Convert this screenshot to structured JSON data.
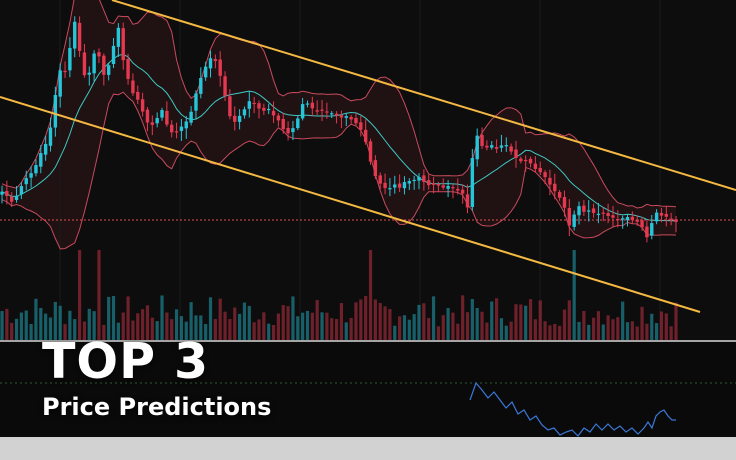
{
  "headline": {
    "title": "TOP 3",
    "subtitle": "Price Predictions"
  },
  "colors": {
    "background": "#0d0d0d",
    "bull": "#26c6da",
    "bear": "#e53950",
    "channel": "#f4b942",
    "bollinger_band": "#c74b5d",
    "bollinger_basis": "#3ec9c2",
    "price_line": "#e05050",
    "indicator": "#3b78d8"
  },
  "chart_data": {
    "type": "candlestick",
    "title": "",
    "xlabel": "",
    "ylabel": "",
    "candles": 140,
    "path": [
      [
        0,
        190
      ],
      [
        6,
        195
      ],
      [
        12,
        202
      ],
      [
        18,
        194
      ],
      [
        24,
        180
      ],
      [
        30,
        175
      ],
      [
        36,
        165
      ],
      [
        42,
        150
      ],
      [
        48,
        140
      ],
      [
        52,
        120
      ],
      [
        56,
        90
      ],
      [
        60,
        70
      ],
      [
        64,
        78
      ],
      [
        68,
        55
      ],
      [
        72,
        40
      ],
      [
        75,
        20
      ],
      [
        78,
        45
      ],
      [
        82,
        60
      ],
      [
        86,
        85
      ],
      [
        90,
        70
      ],
      [
        95,
        50
      ],
      [
        100,
        58
      ],
      [
        105,
        80
      ],
      [
        110,
        60
      ],
      [
        115,
        40
      ],
      [
        118,
        25
      ],
      [
        122,
        55
      ],
      [
        126,
        72
      ],
      [
        132,
        92
      ],
      [
        138,
        100
      ],
      [
        144,
        115
      ],
      [
        150,
        128
      ],
      [
        156,
        120
      ],
      [
        162,
        110
      ],
      [
        168,
        128
      ],
      [
        174,
        135
      ],
      [
        180,
        128
      ],
      [
        186,
        122
      ],
      [
        192,
        110
      ],
      [
        198,
        85
      ],
      [
        204,
        70
      ],
      [
        210,
        58
      ],
      [
        215,
        60
      ],
      [
        220,
        75
      ],
      [
        226,
        100
      ],
      [
        232,
        125
      ],
      [
        238,
        118
      ],
      [
        244,
        110
      ],
      [
        250,
        100
      ],
      [
        256,
        105
      ],
      [
        262,
        112
      ],
      [
        268,
        108
      ],
      [
        274,
        116
      ],
      [
        280,
        122
      ],
      [
        286,
        135
      ],
      [
        292,
        130
      ],
      [
        298,
        118
      ],
      [
        304,
        100
      ],
      [
        310,
        106
      ],
      [
        316,
        112
      ],
      [
        322,
        110
      ],
      [
        328,
        112
      ],
      [
        334,
        114
      ],
      [
        340,
        118
      ],
      [
        346,
        116
      ],
      [
        352,
        120
      ],
      [
        358,
        125
      ],
      [
        364,
        135
      ],
      [
        370,
        160
      ],
      [
        376,
        178
      ],
      [
        382,
        186
      ],
      [
        388,
        190
      ],
      [
        394,
        184
      ],
      [
        400,
        188
      ],
      [
        406,
        180
      ],
      [
        412,
        182
      ],
      [
        418,
        176
      ],
      [
        424,
        182
      ],
      [
        430,
        186
      ],
      [
        436,
        184
      ],
      [
        442,
        188
      ],
      [
        448,
        186
      ],
      [
        454,
        188
      ],
      [
        460,
        192
      ],
      [
        465,
        195
      ],
      [
        468,
        210
      ],
      [
        471,
        185
      ],
      [
        474,
        125
      ],
      [
        477,
        135
      ],
      [
        480,
        145
      ],
      [
        486,
        148
      ],
      [
        492,
        145
      ],
      [
        498,
        150
      ],
      [
        504,
        142
      ],
      [
        510,
        150
      ],
      [
        516,
        158
      ],
      [
        522,
        162
      ],
      [
        528,
        160
      ],
      [
        534,
        168
      ],
      [
        540,
        172
      ],
      [
        546,
        178
      ],
      [
        552,
        188
      ],
      [
        558,
        195
      ],
      [
        564,
        205
      ],
      [
        568,
        228
      ],
      [
        572,
        220
      ],
      [
        576,
        210
      ],
      [
        580,
        205
      ],
      [
        584,
        212
      ],
      [
        590,
        210
      ],
      [
        596,
        215
      ],
      [
        602,
        212
      ],
      [
        608,
        216
      ],
      [
        614,
        218
      ],
      [
        620,
        220
      ],
      [
        626,
        216
      ],
      [
        632,
        220
      ],
      [
        638,
        222
      ],
      [
        644,
        230
      ],
      [
        648,
        240
      ],
      [
        652,
        222
      ],
      [
        656,
        212
      ],
      [
        660,
        216
      ],
      [
        664,
        215
      ],
      [
        668,
        218
      ],
      [
        672,
        219
      ],
      [
        676,
        222
      ]
    ],
    "channel_lines": [
      {
        "x": [
          112,
          736
        ],
        "y": [
          0,
          190
        ]
      },
      {
        "x": [
          0,
          700
        ],
        "y": [
          97,
          312
        ]
      }
    ],
    "reference_price_level": 220,
    "volume_panel": {
      "top": 250,
      "bottom": 340
    },
    "indicator_panel": {
      "top": 383,
      "bottom": 437
    },
    "indicator_path": [
      [
        470,
        400
      ],
      [
        476,
        383
      ],
      [
        482,
        390
      ],
      [
        488,
        398
      ],
      [
        494,
        392
      ],
      [
        500,
        400
      ],
      [
        506,
        408
      ],
      [
        512,
        402
      ],
      [
        518,
        414
      ],
      [
        524,
        410
      ],
      [
        530,
        420
      ],
      [
        536,
        416
      ],
      [
        542,
        425
      ],
      [
        548,
        430
      ],
      [
        554,
        428
      ],
      [
        560,
        435
      ],
      [
        566,
        432
      ],
      [
        572,
        430
      ],
      [
        578,
        436
      ],
      [
        584,
        428
      ],
      [
        590,
        432
      ],
      [
        596,
        424
      ],
      [
        602,
        430
      ],
      [
        608,
        424
      ],
      [
        614,
        430
      ],
      [
        620,
        426
      ],
      [
        626,
        432
      ],
      [
        632,
        428
      ],
      [
        638,
        434
      ],
      [
        644,
        428
      ],
      [
        648,
        422
      ],
      [
        652,
        428
      ],
      [
        656,
        416
      ],
      [
        660,
        412
      ],
      [
        664,
        410
      ],
      [
        668,
        416
      ],
      [
        672,
        420
      ],
      [
        676,
        420
      ]
    ]
  }
}
